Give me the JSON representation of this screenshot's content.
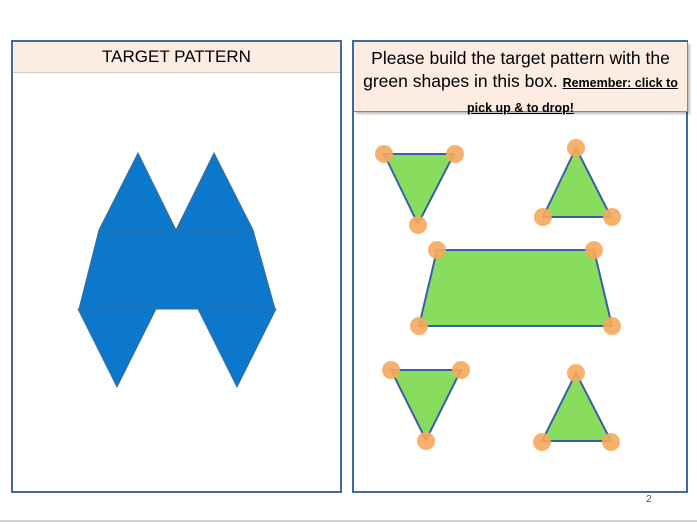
{
  "target_panel": {
    "title": "TARGET PATTERN",
    "shape_color": "#0b78cc",
    "outline_color": "#3d6c95"
  },
  "build_panel": {
    "instruction": "Please build the target pattern with the green shapes in this box.",
    "reminder": "Remember: click to pick up & to drop!",
    "shape_color": "#88dd5e",
    "outline_color": "#3a5ea8",
    "handle_color": "#f7a85c"
  },
  "page_number": "2"
}
